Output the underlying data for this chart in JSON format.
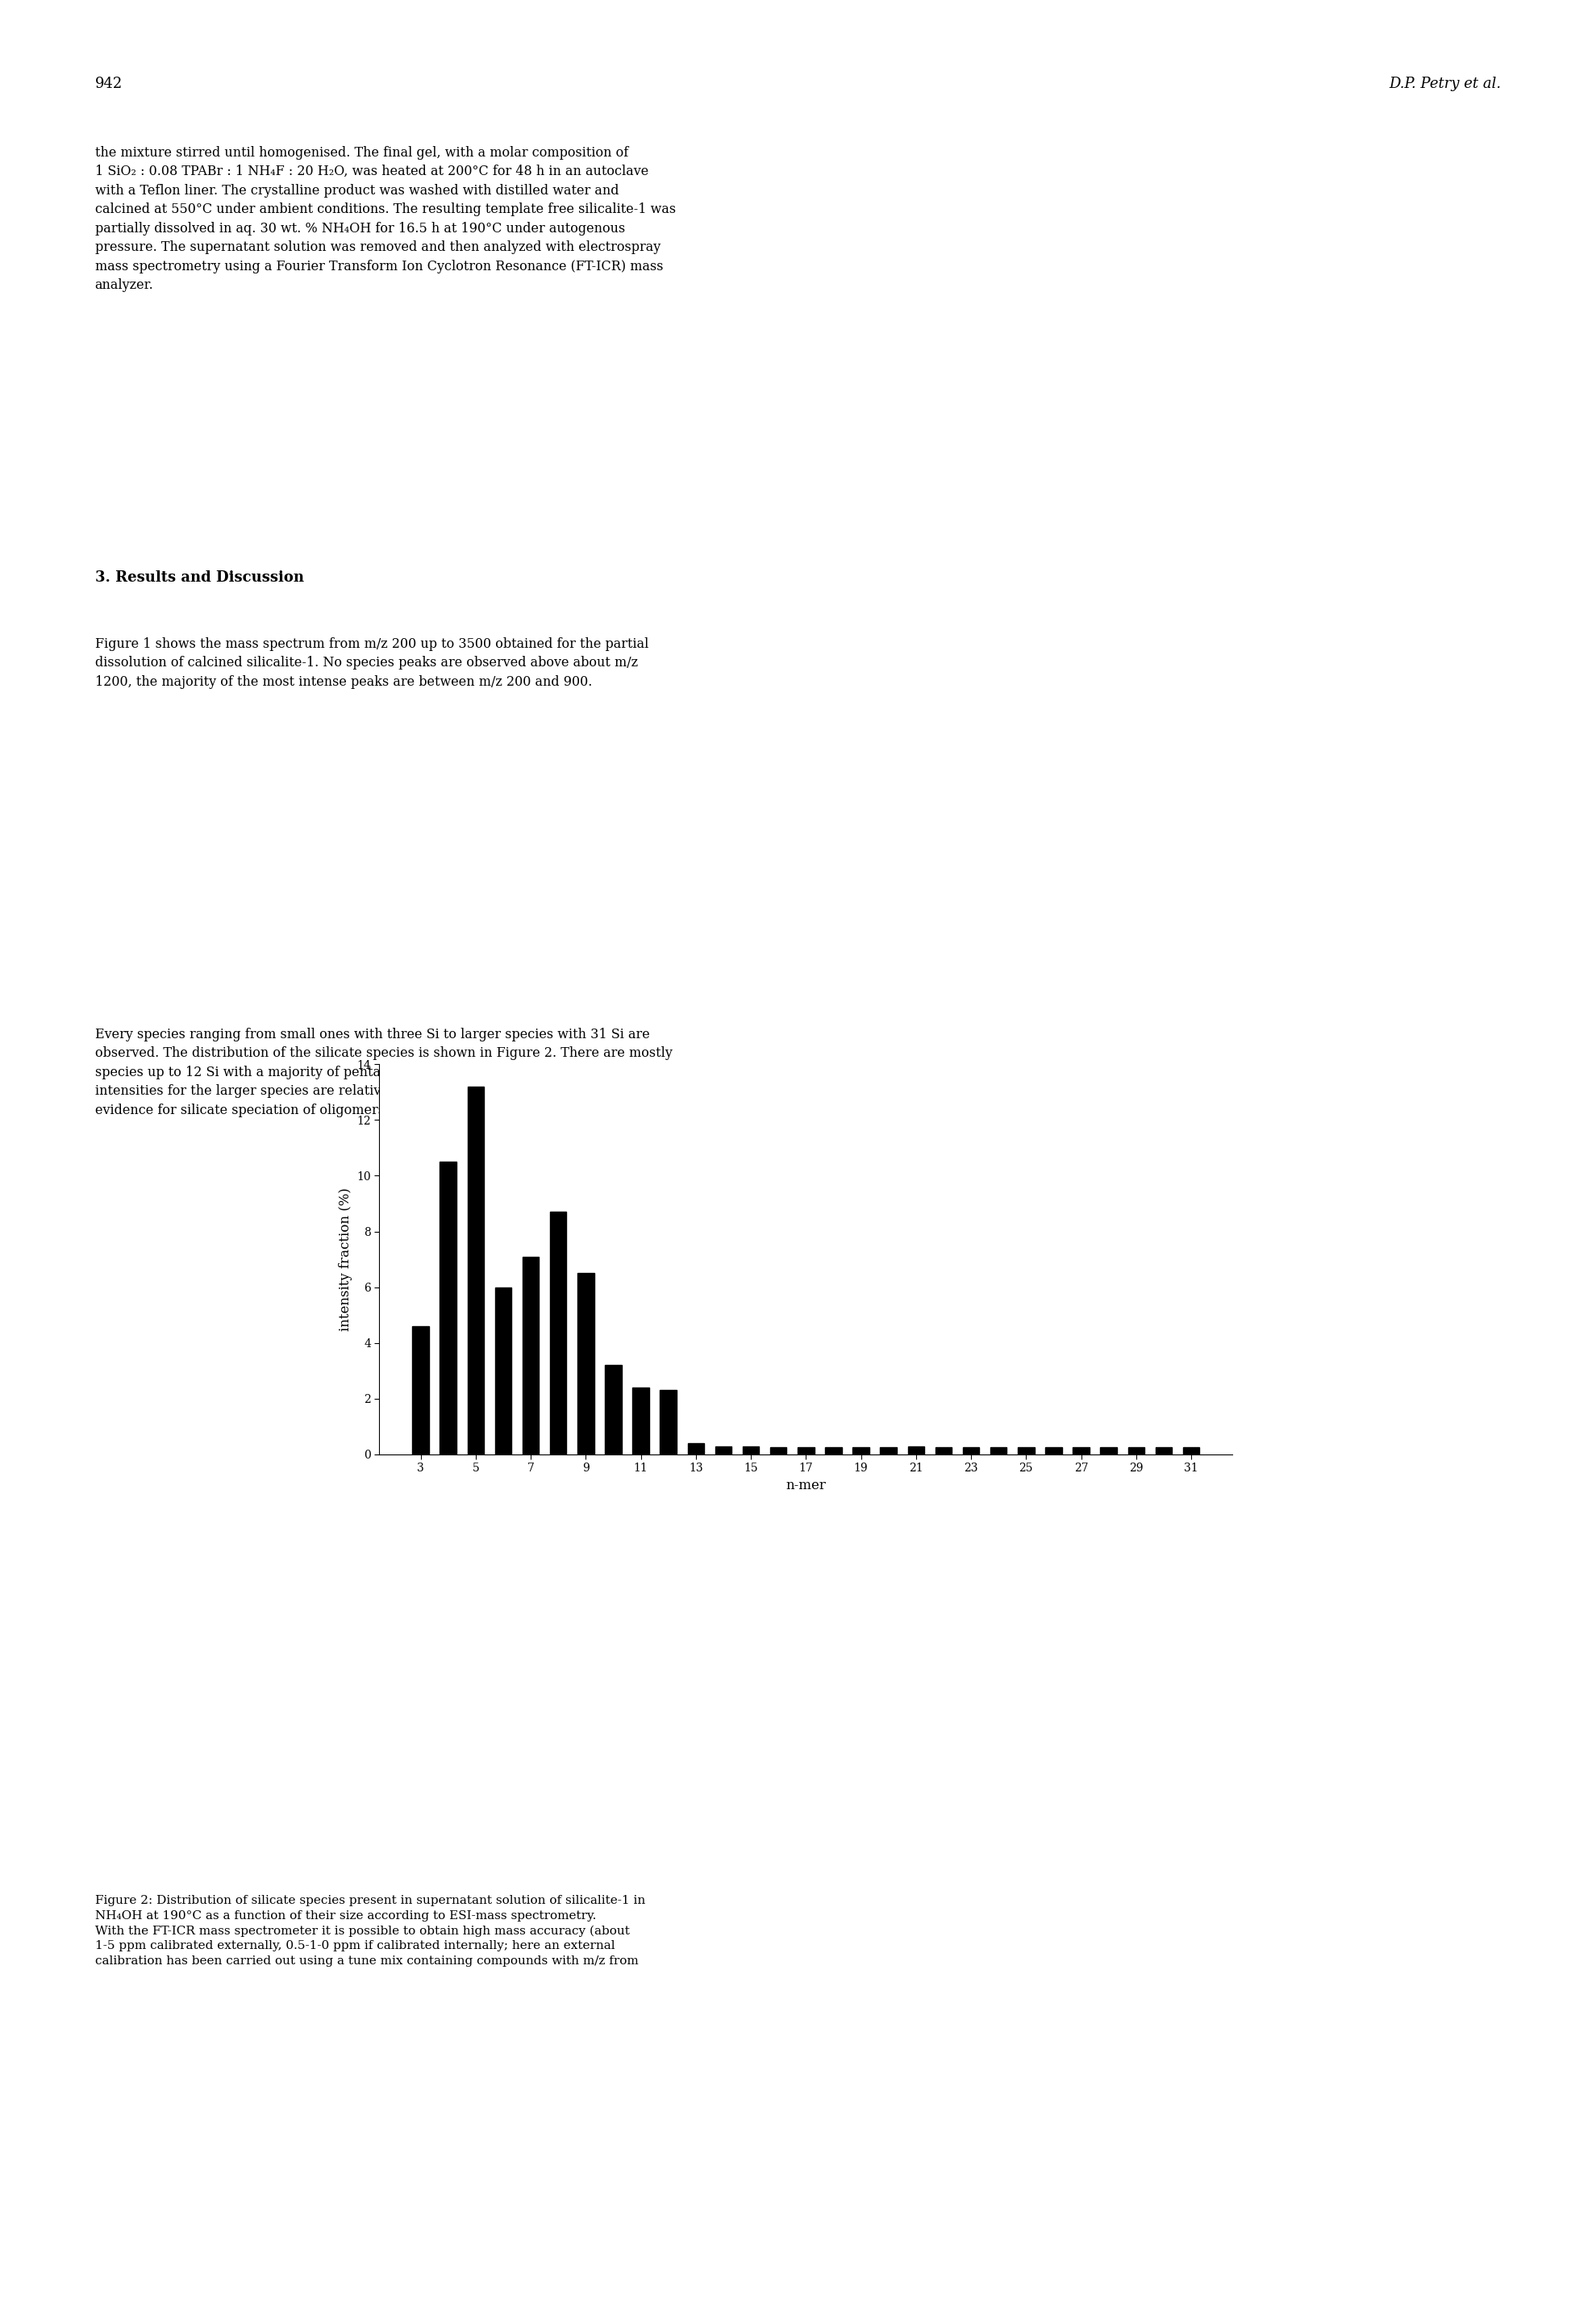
{
  "n_values": [
    3,
    4,
    5,
    6,
    7,
    8,
    9,
    10,
    11,
    12,
    13,
    14,
    15,
    16,
    17,
    18,
    19,
    20,
    21,
    22,
    23,
    24,
    25,
    26,
    27,
    28,
    29,
    30,
    31
  ],
  "intensities": [
    4.6,
    10.5,
    13.2,
    6.0,
    7.1,
    8.7,
    6.5,
    3.2,
    2.4,
    2.3,
    0.4,
    0.3,
    0.3,
    0.25,
    0.25,
    0.25,
    0.25,
    0.25,
    0.3,
    0.25,
    0.25,
    0.25,
    0.25,
    0.25,
    0.25,
    0.25,
    0.25,
    0.25,
    0.25
  ],
  "xlabel": "n-mer",
  "ylabel": "intensity fraction (%)",
  "ylim": [
    0,
    14
  ],
  "yticks": [
    0,
    2,
    4,
    6,
    8,
    10,
    12,
    14
  ],
  "xtick_labels": [
    "3",
    "5",
    "7",
    "9",
    "11",
    "13",
    "15",
    "17",
    "19",
    "21",
    "23",
    "25",
    "27",
    "29",
    "31"
  ],
  "xtick_positions": [
    3,
    5,
    7,
    9,
    11,
    13,
    15,
    17,
    19,
    21,
    23,
    25,
    27,
    29,
    31
  ],
  "bar_color": "#000000",
  "bar_width": 0.6,
  "page_number": "942",
  "header_right": "D.P. Petry et al.",
  "body_text_1": "the mixture stirred until homogenised. The final gel, with a molar composition of\n1 SiO₂ : 0.08 TPABr : 1 NH₄F : 20 H₂O, was heated at 200°C for 48 h in an autoclave\nwith a Teflon liner. The crystalline product was washed with distilled water and\ncalcined at 550°C under ambient conditions. The resulting template free silicalite-1 was\npartially dissolved in aq. 30 wt. % NH₄OH for 16.5 h at 190°C under autogenous\npressure. The supernatant solution was removed and then analyzed with electrospray\nmass spectrometry using a Fourier Transform Ion Cyclotron Resonance (FT-ICR) mass\nanalyzer.",
  "section_title": "3. Results and Discussion",
  "body_text_2": "Figure 1 shows the mass spectrum from m/z 200 up to 3500 obtained for the partial\ndissolution of calcined silicalite-1. No species peaks are observed above about m/z\n1200, the majority of the most intense peaks are between m/z 200 and 900.",
  "body_text_3": "Every species ranging from small ones with three Si to larger species with 31 Si are\nobserved. The distribution of the silicate species is shown in Figure 2. There are mostly\nspecies up to 12 Si with a majority of pentamers and tetramers, whereas the signal\nintensities for the larger species are relatively weak. This is consistent with the NMR\nevidence for silicate speciation of oligomers with Si number up to 12 atoms [6].",
  "caption_bottom": "Figure 2: Distribution of silicate species present in supernatant solution of silicalite-1 in\nNH₄OH at 190°C as a function of their size according to ESI-mass spectrometry.\nWith the FT-ICR mass spectrometer it is possible to obtain high mass accuracy (about\n1-5 ppm calibrated externally, 0.5-1-0 ppm if calibrated internally; here an external\ncalibration has been carried out using a tune mix containing compounds with m/z from"
}
